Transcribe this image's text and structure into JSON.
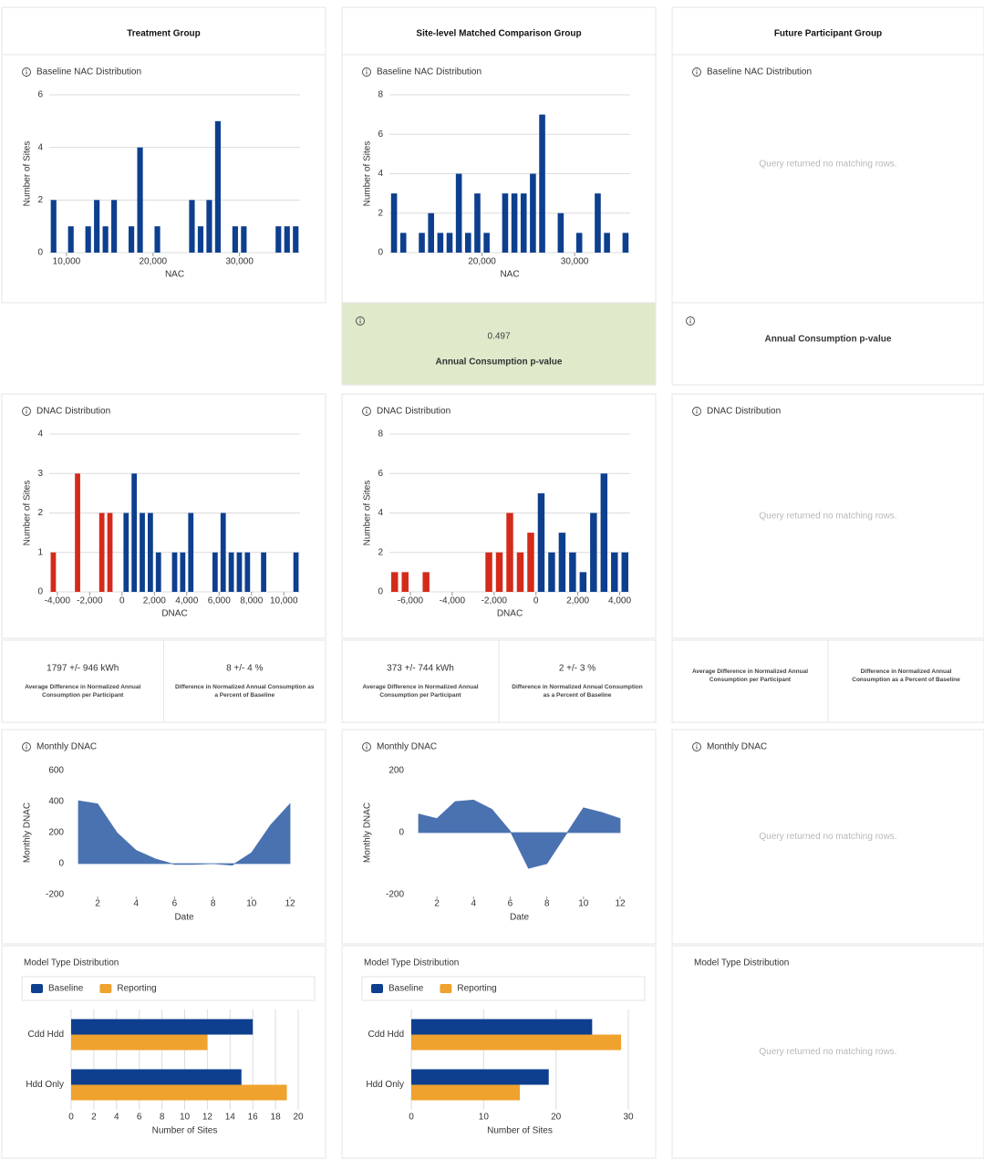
{
  "columns": [
    {
      "header": "Treatment Group",
      "nac": {
        "type": "histogram",
        "title": "Baseline NAC Distribution",
        "x_label": "NAC",
        "y_label": "Number of Sites",
        "bins": [
          8000,
          9000,
          10000,
          11000,
          12000,
          13000,
          14000,
          15000,
          16000,
          17000,
          18000,
          19000,
          20000,
          21000,
          22000,
          23000,
          24000,
          25000,
          26000,
          27000,
          28000,
          29000,
          30000,
          31000,
          32000,
          33000,
          34000,
          35000,
          36000,
          37000
        ],
        "counts": [
          2,
          0,
          1,
          0,
          1,
          2,
          1,
          2,
          0,
          1,
          4,
          0,
          1,
          0,
          0,
          0,
          2,
          1,
          2,
          5,
          0,
          1,
          1,
          0,
          0,
          0,
          1,
          1,
          1
        ],
        "color": "#0d3f8e",
        "xlim": [
          8000,
          37000
        ],
        "xticks": [
          {
            "value": 10000,
            "label": "10,000"
          },
          {
            "value": 20000,
            "label": "20,000"
          },
          {
            "value": 30000,
            "label": "30,000"
          }
        ],
        "ylim": [
          0,
          6
        ],
        "yticks": [
          0,
          2,
          4,
          6
        ],
        "grid": true
      },
      "dnac": {
        "type": "histogram",
        "title": "DNAC Distribution",
        "x_label": "DNAC",
        "y_label": "Number of Sites",
        "bins": [
          -4500,
          -4000,
          -3500,
          -3000,
          -2500,
          -2000,
          -1500,
          -1000,
          -500,
          0,
          500,
          1000,
          1500,
          2000,
          2500,
          3000,
          3500,
          4000,
          4500,
          5000,
          5500,
          6000,
          6500,
          7000,
          7500,
          8000,
          8500,
          9000,
          9500,
          10000,
          10500,
          11000
        ],
        "counts": [
          1,
          0,
          0,
          3,
          0,
          0,
          2,
          2,
          0,
          2,
          3,
          2,
          2,
          1,
          0,
          1,
          1,
          2,
          0,
          0,
          1,
          2,
          1,
          1,
          1,
          0,
          1,
          0,
          0,
          0,
          1
        ],
        "color": "#0d3f8e",
        "negative_color": "#d42a1a",
        "xlim": [
          -4500,
          11000
        ],
        "xticks": [
          {
            "value": -4000,
            "label": "-4,000"
          },
          {
            "value": -2000,
            "label": "-2,000"
          },
          0,
          {
            "value": 2000,
            "label": "2,000"
          },
          {
            "value": 4000,
            "label": "4,000"
          },
          {
            "value": 6000,
            "label": "6,000"
          },
          {
            "value": 8000,
            "label": "8,000"
          },
          {
            "value": 10000,
            "label": "10,000"
          }
        ],
        "ylim": [
          0,
          4
        ],
        "yticks": [
          0,
          1,
          2,
          3,
          4
        ],
        "grid": true
      },
      "stats": [
        {
          "value": "1797 +/- 946 kWh",
          "label": "Average Difference in Normalized Annual Consumption per Participant"
        },
        {
          "value": "8 +/- 4 %",
          "label": "Difference in Normalized Annual Consumption as a Percent of Baseline"
        }
      ],
      "monthly": {
        "type": "area",
        "title": "Monthly DNAC",
        "x_label": "Date",
        "y_label": "Monthly DNAC",
        "x": [
          1,
          2,
          3,
          4,
          5,
          6,
          7,
          8,
          9,
          10,
          11,
          12
        ],
        "values": [
          405,
          385,
          200,
          85,
          30,
          -5,
          -5,
          0,
          -10,
          70,
          250,
          385
        ],
        "color": "#4a72b0",
        "xlim": [
          1,
          12
        ],
        "xticks": [
          2,
          4,
          6,
          8,
          10,
          12
        ],
        "ylim": [
          -200,
          600
        ],
        "yticks": [
          -200,
          0,
          200,
          400,
          600
        ]
      },
      "model": {
        "type": "hbar",
        "title": "Model Type Distribution",
        "x_label": "Number of Sites",
        "categories": [
          "Cdd Hdd",
          "Hdd Only"
        ],
        "series": [
          {
            "name": "Baseline",
            "color": "#0d3f8e",
            "values": [
              16,
              15
            ]
          },
          {
            "name": "Reporting",
            "color": "#efa22e",
            "values": [
              12,
              19
            ]
          }
        ],
        "xlim": [
          0,
          20
        ],
        "xticks": [
          0,
          2,
          4,
          6,
          8,
          10,
          12,
          14,
          16,
          18,
          20
        ],
        "grid": true
      }
    },
    {
      "header": "Site-level Matched Comparison Group",
      "nac": {
        "type": "histogram",
        "title": "Baseline NAC Distribution",
        "x_label": "NAC",
        "y_label": "Number of Sites",
        "bins": [
          10000,
          11000,
          12000,
          13000,
          14000,
          15000,
          16000,
          17000,
          18000,
          19000,
          20000,
          21000,
          22000,
          23000,
          24000,
          25000,
          26000,
          27000,
          28000,
          29000,
          30000,
          31000,
          32000,
          33000,
          34000,
          35000,
          36000
        ],
        "counts": [
          3,
          1,
          0,
          1,
          2,
          1,
          1,
          4,
          1,
          3,
          1,
          0,
          3,
          3,
          3,
          4,
          7,
          0,
          2,
          0,
          1,
          0,
          3,
          1,
          0,
          1
        ],
        "color": "#0d3f8e",
        "xlim": [
          10000,
          36000
        ],
        "xticks": [
          {
            "value": 20000,
            "label": "20,000"
          },
          {
            "value": 30000,
            "label": "30,000"
          }
        ],
        "ylim": [
          0,
          8
        ],
        "yticks": [
          0,
          2,
          4,
          6,
          8
        ],
        "grid": true
      },
      "pvalue": {
        "value": 0.497,
        "label": "Annual Consumption p-value"
      },
      "dnac": {
        "type": "histogram",
        "title": "DNAC Distribution",
        "x_label": "DNAC",
        "y_label": "Number of Sites",
        "bins": [
          -7000,
          -6500,
          -6000,
          -5500,
          -5000,
          -4500,
          -4000,
          -3500,
          -3000,
          -2500,
          -2000,
          -1500,
          -1000,
          -500,
          0,
          500,
          1000,
          1500,
          2000,
          2500,
          3000,
          3500,
          4000,
          4500
        ],
        "counts": [
          1,
          1,
          0,
          1,
          0,
          0,
          0,
          0,
          0,
          2,
          2,
          4,
          2,
          3,
          5,
          2,
          3,
          2,
          1,
          4,
          6,
          2,
          2
        ],
        "color": "#0d3f8e",
        "negative_color": "#d42a1a",
        "xlim": [
          -7000,
          4500
        ],
        "xticks": [
          {
            "value": -6000,
            "label": "-6,000"
          },
          {
            "value": -4000,
            "label": "-4,000"
          },
          {
            "value": -2000,
            "label": "-2,000"
          },
          0,
          {
            "value": 2000,
            "label": "2,000"
          },
          {
            "value": 4000,
            "label": "4,000"
          }
        ],
        "ylim": [
          0,
          8
        ],
        "yticks": [
          0,
          2,
          4,
          6,
          8
        ],
        "grid": true
      },
      "stats": [
        {
          "value": "373 +/- 744 kWh",
          "label": "Average Difference in Normalized Annual Consumption per Participant"
        },
        {
          "value": "2 +/- 3 %",
          "label": "Difference in Normalized Annual Consumption as a Percent of Baseline"
        }
      ],
      "monthly": {
        "type": "area",
        "title": "Monthly DNAC",
        "x_label": "Date",
        "y_label": "Monthly DNAC",
        "x": [
          1,
          2,
          3,
          4,
          5,
          6,
          7,
          8,
          9,
          10,
          11,
          12
        ],
        "values": [
          60,
          45,
          100,
          105,
          75,
          5,
          -115,
          -100,
          -10,
          80,
          65,
          45
        ],
        "color": "#4a72b0",
        "xlim": [
          1,
          12
        ],
        "xticks": [
          2,
          4,
          6,
          8,
          10,
          12
        ],
        "ylim": [
          -200,
          200
        ],
        "yticks": [
          -200,
          0,
          200
        ]
      },
      "model": {
        "type": "hbar",
        "title": "Model Type Distribution",
        "x_label": "Number of Sites",
        "categories": [
          "Cdd Hdd",
          "Hdd Only"
        ],
        "series": [
          {
            "name": "Baseline",
            "color": "#0d3f8e",
            "values": [
              25,
              19
            ]
          },
          {
            "name": "Reporting",
            "color": "#efa22e",
            "values": [
              29,
              15
            ]
          }
        ],
        "xlim": [
          0,
          30
        ],
        "xticks": [
          0,
          10,
          20,
          30
        ],
        "grid": true
      }
    },
    {
      "header": "Future Participant Group",
      "nac": {
        "title": "Baseline NAC Distribution",
        "empty_message": "Query returned no matching rows."
      },
      "pvalue": {
        "label": "Annual Consumption p-value"
      },
      "dnac": {
        "title": "DNAC Distribution",
        "empty_message": "Query returned no matching rows."
      },
      "stats": [
        {
          "label": "Average Difference in Normalized Annual Consumption per Participant"
        },
        {
          "label": "Difference in Normalized Annual Consumption as a Percent of Baseline"
        }
      ],
      "monthly": {
        "title": "Monthly DNAC",
        "empty_message": "Query returned no matching rows."
      },
      "model": {
        "title": "Model Type Distribution",
        "empty_message": "Query returned no matching rows."
      }
    }
  ]
}
